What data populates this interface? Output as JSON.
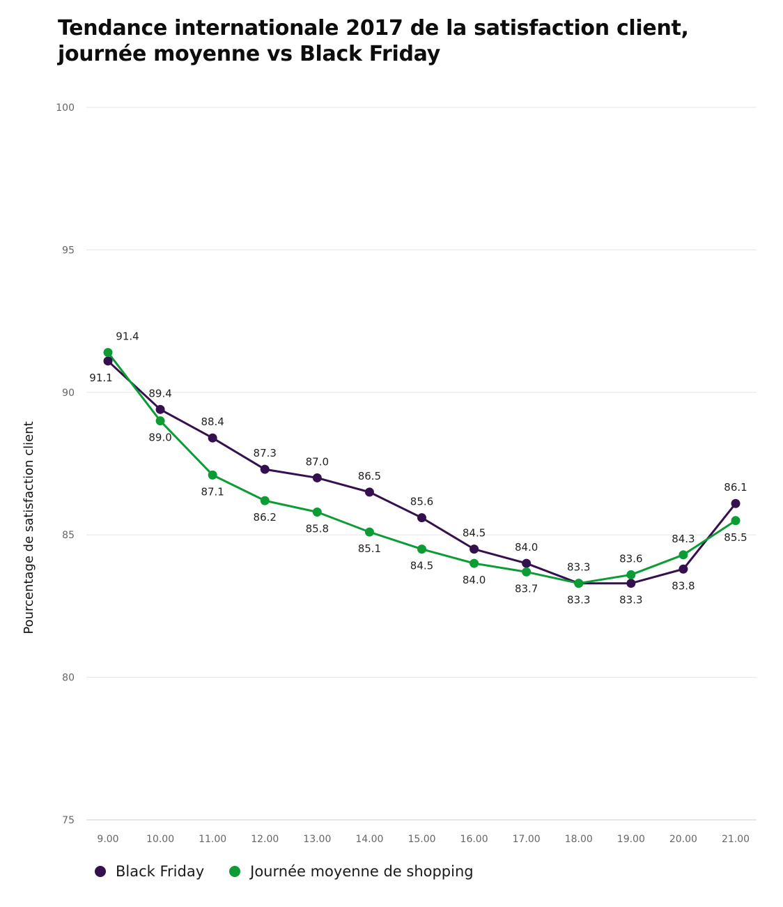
{
  "title_line1": "Tendance internationale 2017 de la satisfaction client,",
  "title_line2": "journée moyenne vs Black Friday",
  "chart_data": {
    "type": "line",
    "title": "Tendance internationale 2017 de la satisfaction client, journée moyenne vs Black Friday",
    "xlabel": "",
    "ylabel": "Pourcentage de satisfaction client",
    "categories": [
      "9.00",
      "10.00",
      "11.00",
      "12.00",
      "13.00",
      "14.00",
      "15.00",
      "16.00",
      "17.00",
      "18.00",
      "19.00",
      "20.00",
      "21.00"
    ],
    "ylim": [
      75,
      100
    ],
    "yticks": [
      75,
      80,
      85,
      90,
      95,
      100
    ],
    "grid": true,
    "legend_position": "bottom-left",
    "series": [
      {
        "name": "Black Friday",
        "color": "#35104f",
        "values": [
          91.1,
          89.4,
          88.4,
          87.3,
          87.0,
          86.5,
          85.6,
          84.5,
          84.0,
          83.3,
          83.3,
          83.8,
          86.1
        ],
        "labels": [
          "91.1",
          "89.4",
          "88.4",
          "87.3",
          "87.0",
          "86.5",
          "85.6",
          "84.5",
          "84.0",
          "83.3",
          "83.3",
          "83.8",
          "86.1"
        ]
      },
      {
        "name": "Journée moyenne de shopping",
        "color": "#0b9c34",
        "values": [
          91.4,
          89.0,
          87.1,
          86.2,
          85.8,
          85.1,
          84.5,
          84.0,
          83.7,
          83.3,
          83.6,
          84.3,
          85.5
        ],
        "labels": [
          "91.4",
          "89.0",
          "87.1",
          "86.2",
          "85.8",
          "85.1",
          "84.5",
          "84.0",
          "83.7",
          "83.3",
          "83.6",
          "84.3",
          "85.5"
        ]
      }
    ]
  }
}
